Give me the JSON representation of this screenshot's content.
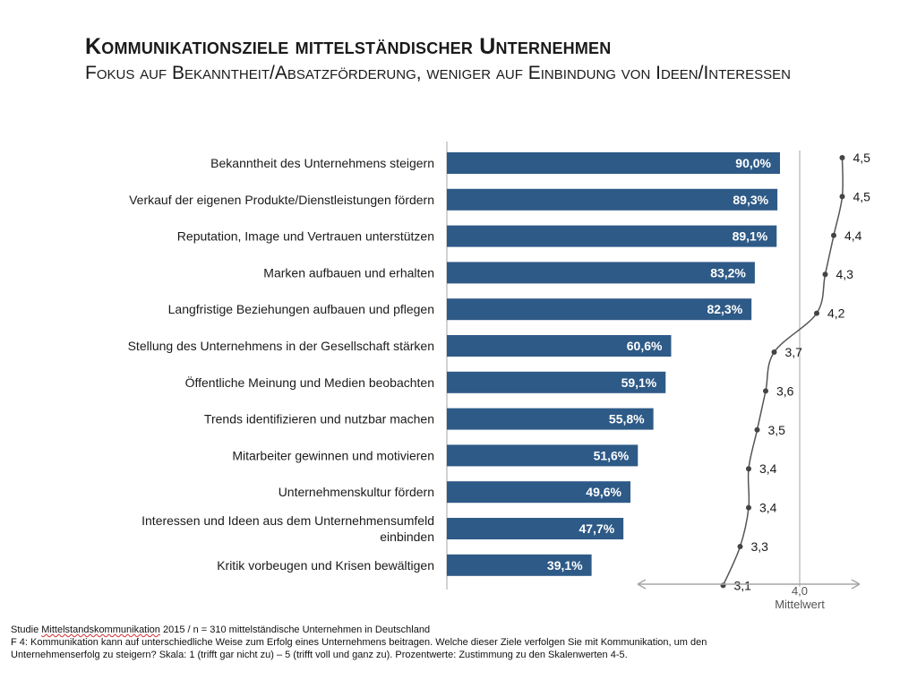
{
  "title": "Kommunikationsziele mittelständischer Unternehmen",
  "subtitle": "Fokus auf Bekanntheit/Absatzförderung, weniger auf Einbindung von Ideen/Interessen",
  "footnote": {
    "source_prefix": "Studie ",
    "source_underlined": "Mittelstandskommunikation",
    "source_suffix": " 2015 / n = 310 mittelständische Unternehmen in Deutschland",
    "note_line1": "F 4: Kommunikation kann auf unterschiedliche Weise zum Erfolg eines Unternehmens beitragen. Welche dieser Ziele verfolgen Sie mit Kommunikation, um den",
    "note_line2": "Unternehmenserfolg zu steigern? Skala: 1 (trifft gar nicht zu) – 5 (trifft voll und ganz zu). Prozentwerte: Zustimmung zu den Skalenwerten 4-5."
  },
  "colors": {
    "bar": "#2e5a87",
    "bar_label": "#ffffff",
    "line": "#555555",
    "axis": "#a6a6a6"
  },
  "chart_data": {
    "type": "bar",
    "orientation": "horizontal",
    "categories": [
      [
        "Bekanntheit des Unternehmens steigern"
      ],
      [
        "Verkauf der eigenen Produkte/Dienstleistungen fördern"
      ],
      [
        "Reputation, Image und Vertrauen unterstützen"
      ],
      [
        "Marken aufbauen und erhalten"
      ],
      [
        "Langfristige Beziehungen aufbauen und pflegen"
      ],
      [
        "Stellung des Unternehmens in der Gesellschaft stärken"
      ],
      [
        "Öffentliche Meinung und Medien beobachten"
      ],
      [
        "Trends identifizieren und nutzbar machen"
      ],
      [
        "Mitarbeiter gewinnen und motivieren"
      ],
      [
        "Unternehmenskultur fördern"
      ],
      [
        "Interessen und Ideen aus dem Unternehmensumfeld",
        "einbinden"
      ],
      [
        "Kritik vorbeugen und Krisen bewältigen"
      ]
    ],
    "values": [
      90.0,
      89.3,
      89.1,
      83.2,
      82.3,
      60.6,
      59.1,
      55.8,
      51.6,
      49.6,
      47.7,
      39.1
    ],
    "value_labels": [
      "90,0%",
      "89,3%",
      "89,1%",
      "83,2%",
      "82,3%",
      "60,6%",
      "59,1%",
      "55,8%",
      "51,6%",
      "49,6%",
      "47,7%",
      "39,1%"
    ],
    "xlim": [
      0,
      100
    ],
    "mean_series": {
      "type": "line",
      "values": [
        4.5,
        4.5,
        4.4,
        4.3,
        4.2,
        3.7,
        3.6,
        3.5,
        3.4,
        3.4,
        3.3,
        3.1
      ],
      "value_labels": [
        "4,5",
        "4,5",
        "4,4",
        "4,3",
        "4,2",
        "3,7",
        "3,6",
        "3,5",
        "3,4",
        "3,4",
        "3,3",
        "3,1"
      ],
      "reference_value": 4.0,
      "reference_label": "4,0",
      "axis_label": "Mittelwert"
    }
  }
}
